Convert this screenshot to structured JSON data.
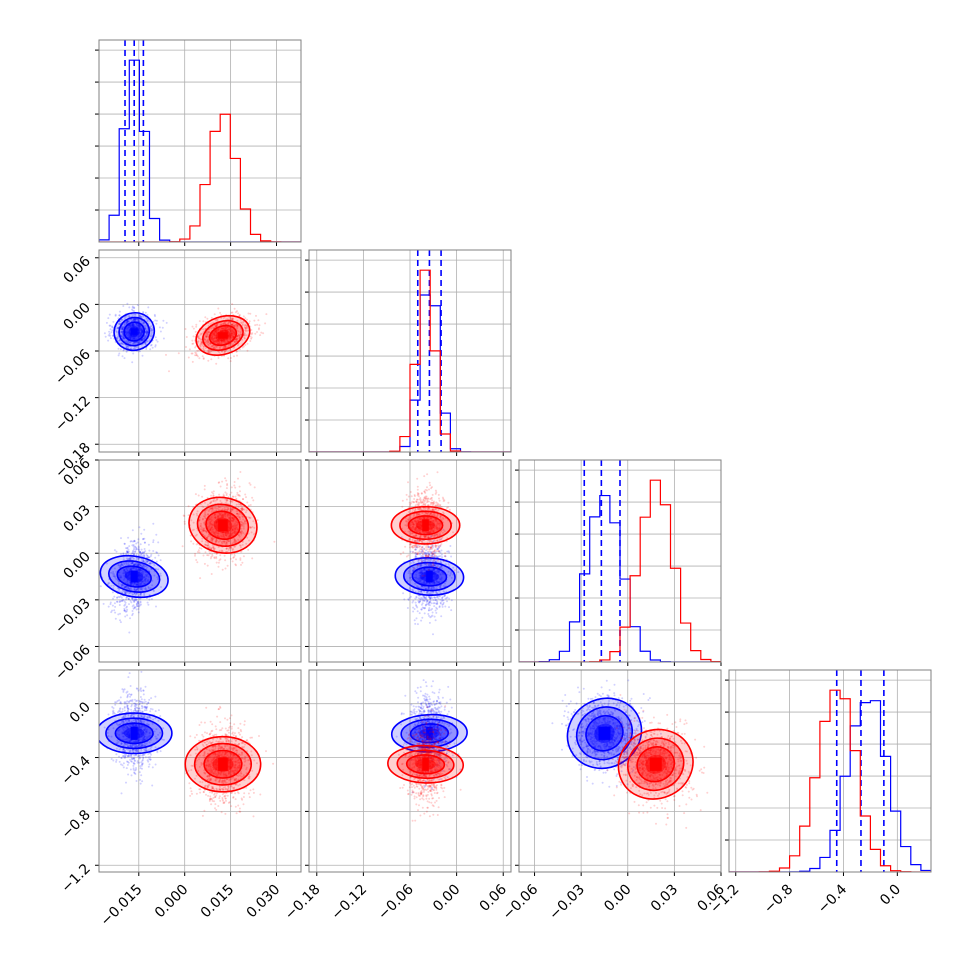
{
  "chart_data": {
    "type": "corner",
    "grid": true,
    "parameters": 4,
    "series": [
      {
        "color": "#0000ff",
        "mean": [
          -0.0165,
          -0.035,
          -0.015,
          -0.22
        ],
        "std": [
          0.0033,
          0.012,
          0.011,
          0.14
        ],
        "corr": [
          [
            0,
            1,
            0.05
          ],
          [
            0,
            2,
            0.2
          ],
          [
            0,
            3,
            0.0
          ],
          [
            1,
            2,
            0.05
          ],
          [
            1,
            3,
            -0.05
          ],
          [
            2,
            3,
            -0.15
          ]
        ],
        "quantiles": [
          [
            -0.0195,
            -0.0165,
            -0.0135
          ],
          [
            -0.05,
            -0.035,
            -0.02
          ],
          [
            -0.028,
            -0.017,
            -0.005
          ],
          [
            -0.45,
            -0.27,
            -0.1
          ]
        ]
      },
      {
        "color": "#ff0000",
        "mean": [
          0.0125,
          -0.04,
          0.018,
          -0.45
        ],
        "std": [
          0.0045,
          0.012,
          0.011,
          0.14
        ],
        "corr": [
          [
            0,
            1,
            0.3
          ],
          [
            0,
            2,
            0.1
          ],
          [
            0,
            3,
            0.0
          ],
          [
            1,
            2,
            0.0
          ],
          [
            1,
            3,
            0.05
          ],
          [
            2,
            3,
            -0.1
          ]
        ]
      }
    ],
    "ranges": [
      [
        -0.028,
        0.038
      ],
      [
        -0.19,
        0.07
      ],
      [
        -0.07,
        0.06
      ],
      [
        -1.25,
        0.25
      ]
    ],
    "tick_labels": [
      [
        {
          "v": -0.015,
          "t": "−0.015"
        },
        {
          "v": 0.0,
          "t": "0.000"
        },
        {
          "v": 0.015,
          "t": "0.015"
        },
        {
          "v": 0.03,
          "t": "0.030"
        }
      ],
      [
        {
          "v": -0.18,
          "t": "−0.18"
        },
        {
          "v": -0.12,
          "t": "−0.12"
        },
        {
          "v": -0.06,
          "t": "−0.06"
        },
        {
          "v": 0.0,
          "t": "0.00"
        },
        {
          "v": 0.06,
          "t": "0.06"
        }
      ],
      [
        {
          "v": -0.06,
          "t": "−0.06"
        },
        {
          "v": -0.03,
          "t": "−0.03"
        },
        {
          "v": 0.0,
          "t": "0.00"
        },
        {
          "v": 0.03,
          "t": "0.03"
        },
        {
          "v": 0.06,
          "t": "0.06"
        }
      ],
      [
        {
          "v": -1.2,
          "t": "−1.2"
        },
        {
          "v": -0.8,
          "t": "−0.8"
        },
        {
          "v": -0.4,
          "t": "−0.4"
        },
        {
          "v": 0.0,
          "t": "0.0"
        }
      ]
    ]
  }
}
